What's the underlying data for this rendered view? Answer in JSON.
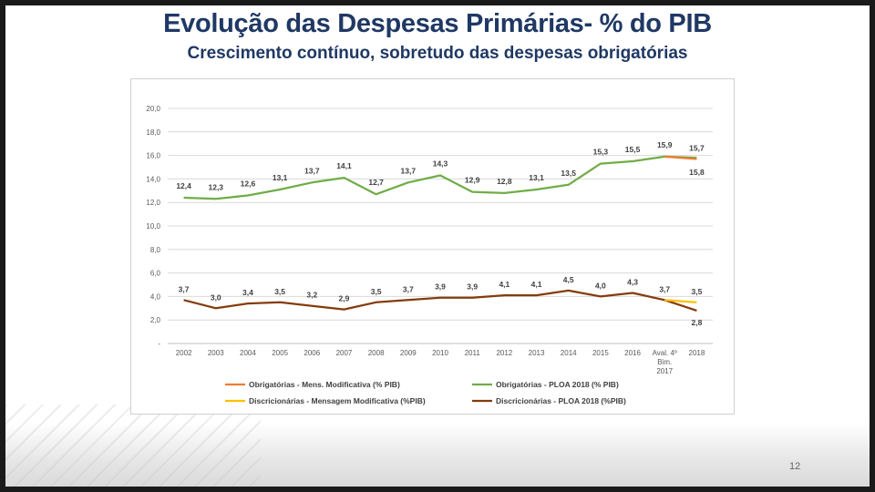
{
  "slide": {
    "title": "Evolução das Despesas Primárias- % do PIB",
    "subtitle": "Crescimento contínuo, sobretudo das despesas obrigatórias",
    "page_number": "12"
  },
  "chart_data": {
    "type": "line",
    "title": "",
    "xlabel": "",
    "ylabel": "",
    "ylim": [
      0,
      20
    ],
    "y_ticks": [
      "-",
      "2,0",
      "4,0",
      "6,0",
      "8,0",
      "10,0",
      "12,0",
      "14,0",
      "16,0",
      "18,0",
      "20,0"
    ],
    "grid": true,
    "legend_position": "bottom",
    "categories": [
      "2002",
      "2003",
      "2004",
      "2005",
      "2006",
      "2007",
      "2008",
      "2009",
      "2010",
      "2011",
      "2012",
      "2013",
      "2014",
      "2015",
      "2016",
      "Aval. 4º Bim. 2017",
      "2018"
    ],
    "category_lines": [
      [
        "2002"
      ],
      [
        "2003"
      ],
      [
        "2004"
      ],
      [
        "2005"
      ],
      [
        "2006"
      ],
      [
        "2007"
      ],
      [
        "2008"
      ],
      [
        "2009"
      ],
      [
        "2010"
      ],
      [
        "2011"
      ],
      [
        "2012"
      ],
      [
        "2013"
      ],
      [
        "2014"
      ],
      [
        "2015"
      ],
      [
        "2016"
      ],
      [
        "Aval. 4º",
        "Bim.",
        "2017"
      ],
      [
        "2018"
      ]
    ],
    "series": [
      {
        "name": "Obrigatórias - Mens. Modificativa (% PIB)",
        "color": "#ed7d31",
        "values": [
          null,
          null,
          null,
          null,
          null,
          null,
          null,
          null,
          null,
          null,
          null,
          null,
          null,
          null,
          null,
          15.9,
          15.7
        ],
        "labels": [
          null,
          null,
          null,
          null,
          null,
          null,
          null,
          null,
          null,
          null,
          null,
          null,
          null,
          null,
          null,
          null,
          "15,7"
        ]
      },
      {
        "name": "Obrigatórias - PLOA 2018 (% PIB)",
        "color": "#70ad47",
        "values": [
          12.4,
          12.3,
          12.6,
          13.1,
          13.7,
          14.1,
          12.7,
          13.7,
          14.3,
          12.9,
          12.8,
          13.1,
          13.5,
          15.3,
          15.5,
          15.9,
          15.8
        ],
        "labels": [
          "12,4",
          "12,3",
          "12,6",
          "13,1",
          "13,7",
          "14,1",
          "12,7",
          "13,7",
          "14,3",
          "12,9",
          "12,8",
          "13,1",
          "13,5",
          "15,3",
          "15,5",
          "15,9",
          "15,8"
        ]
      },
      {
        "name": "Discricionárias - Mensagem Modificativa  (%PIB)",
        "color": "#ffc000",
        "values": [
          null,
          null,
          null,
          null,
          null,
          null,
          null,
          null,
          null,
          null,
          null,
          null,
          null,
          null,
          null,
          3.7,
          3.5
        ],
        "labels": [
          null,
          null,
          null,
          null,
          null,
          null,
          null,
          null,
          null,
          null,
          null,
          null,
          null,
          null,
          null,
          null,
          "3,5"
        ]
      },
      {
        "name": "Discricionárias - PLOA 2018 (%PIB)",
        "color": "#843c0c",
        "values": [
          3.7,
          3.0,
          3.4,
          3.5,
          3.2,
          2.9,
          3.5,
          3.7,
          3.9,
          3.9,
          4.1,
          4.1,
          4.5,
          4.0,
          4.3,
          3.7,
          2.8
        ],
        "labels": [
          "3,7",
          "3,0",
          "3,4",
          "3,5",
          "3,2",
          "2,9",
          "3,5",
          "3,7",
          "3,9",
          "3,9",
          "4,1",
          "4,1",
          "4,5",
          "4,0",
          "4,3",
          "3,7",
          "2,8"
        ]
      }
    ]
  }
}
